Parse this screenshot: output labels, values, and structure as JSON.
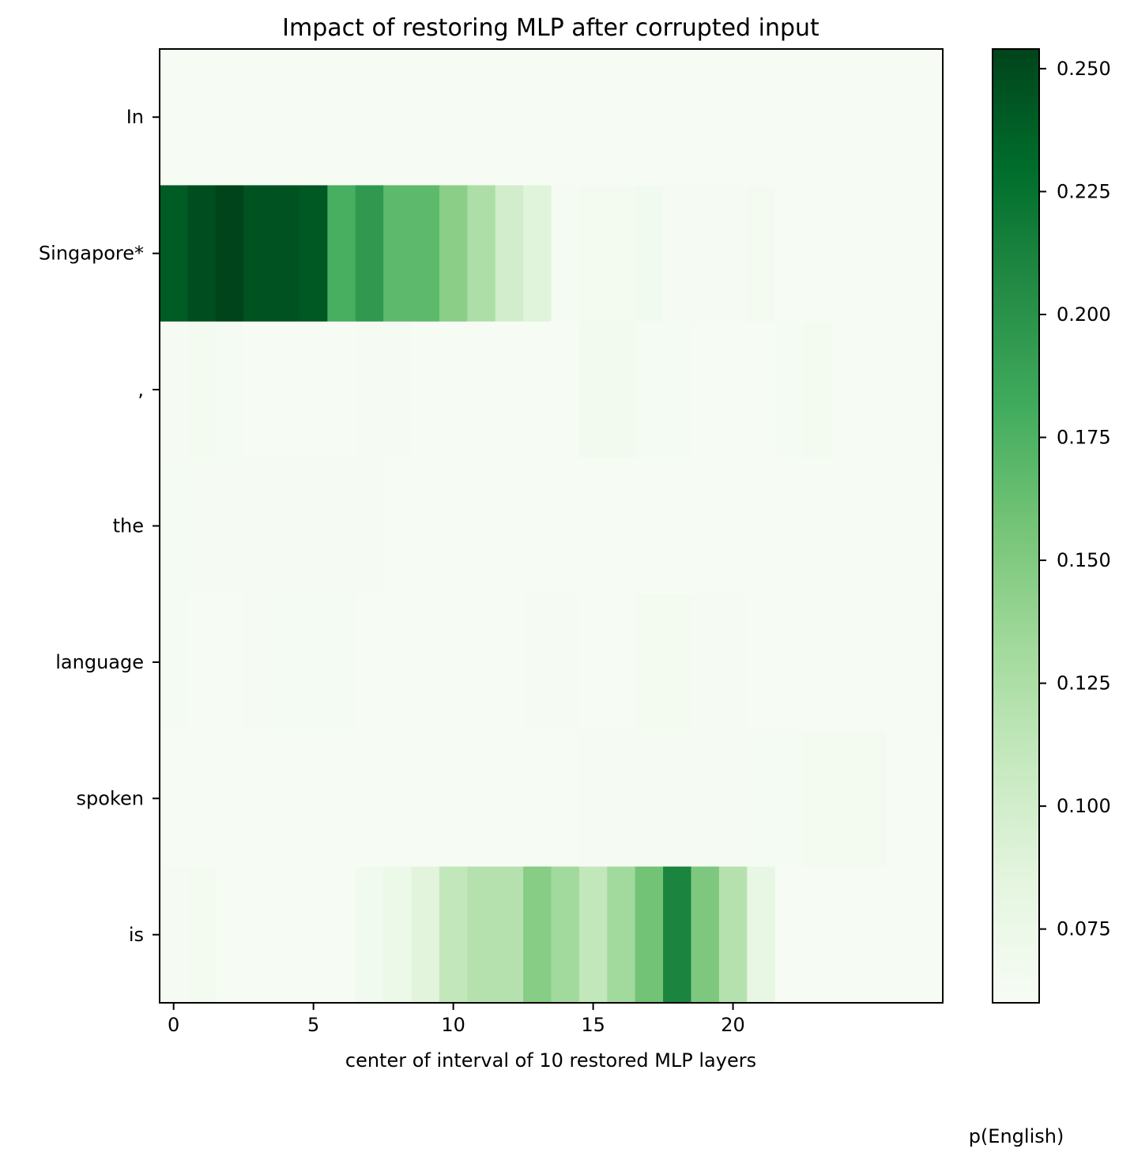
{
  "chart_data": {
    "type": "heatmap",
    "title": "Impact of restoring MLP after corrupted input",
    "xlabel": "center of interval of 10 restored MLP layers",
    "ylabel": "",
    "colorbar_label": "p(English)",
    "colormap": "Greens",
    "rows": [
      "In",
      "Singapore*",
      ",",
      "the",
      "language",
      "spoken",
      "is"
    ],
    "columns": [
      0,
      1,
      2,
      3,
      4,
      5,
      6,
      7,
      8,
      9,
      10,
      11,
      12,
      13,
      14,
      15,
      16,
      17,
      18,
      19,
      20,
      21,
      22,
      23,
      24,
      25,
      26,
      27
    ],
    "x_ticks": [
      0,
      5,
      10,
      15,
      20
    ],
    "color_range": [
      0.06,
      0.254
    ],
    "colorbar_ticks": [
      "0.075",
      "0.100",
      "0.125",
      "0.150",
      "0.175",
      "0.200",
      "0.225",
      "0.250"
    ],
    "values": [
      [
        0.061,
        0.061,
        0.061,
        0.061,
        0.061,
        0.061,
        0.061,
        0.061,
        0.061,
        0.061,
        0.061,
        0.061,
        0.061,
        0.061,
        0.061,
        0.061,
        0.061,
        0.061,
        0.061,
        0.061,
        0.061,
        0.061,
        0.061,
        0.061,
        0.061,
        0.061,
        0.061,
        0.061
      ],
      [
        0.24,
        0.248,
        0.254,
        0.245,
        0.245,
        0.242,
        0.178,
        0.195,
        0.168,
        0.168,
        0.145,
        0.125,
        0.1,
        0.088,
        0.064,
        0.066,
        0.066,
        0.068,
        0.063,
        0.063,
        0.063,
        0.066,
        0.061,
        0.061,
        0.061,
        0.061,
        0.061,
        0.061
      ],
      [
        0.063,
        0.065,
        0.064,
        0.062,
        0.062,
        0.061,
        0.061,
        0.063,
        0.063,
        0.061,
        0.061,
        0.061,
        0.061,
        0.061,
        0.061,
        0.067,
        0.067,
        0.064,
        0.064,
        0.062,
        0.062,
        0.061,
        0.064,
        0.066,
        0.062,
        0.062,
        0.062,
        0.062
      ],
      [
        0.064,
        0.063,
        0.063,
        0.063,
        0.063,
        0.063,
        0.063,
        0.063,
        0.061,
        0.061,
        0.061,
        0.061,
        0.061,
        0.061,
        0.061,
        0.061,
        0.061,
        0.061,
        0.061,
        0.061,
        0.061,
        0.061,
        0.061,
        0.061,
        0.061,
        0.061,
        0.061,
        0.061
      ],
      [
        0.064,
        0.062,
        0.062,
        0.063,
        0.064,
        0.064,
        0.064,
        0.061,
        0.061,
        0.061,
        0.061,
        0.061,
        0.061,
        0.063,
        0.063,
        0.062,
        0.062,
        0.065,
        0.065,
        0.063,
        0.063,
        0.062,
        0.062,
        0.062,
        0.062,
        0.062,
        0.062,
        0.062
      ],
      [
        0.061,
        0.061,
        0.061,
        0.061,
        0.061,
        0.061,
        0.061,
        0.061,
        0.061,
        0.061,
        0.061,
        0.061,
        0.061,
        0.062,
        0.062,
        0.063,
        0.063,
        0.063,
        0.063,
        0.063,
        0.063,
        0.064,
        0.064,
        0.065,
        0.065,
        0.065,
        0.061,
        0.061
      ],
      [
        0.063,
        0.065,
        0.061,
        0.061,
        0.061,
        0.061,
        0.061,
        0.068,
        0.075,
        0.087,
        0.112,
        0.12,
        0.12,
        0.147,
        0.132,
        0.112,
        0.132,
        0.158,
        0.211,
        0.152,
        0.12,
        0.08,
        0.061,
        0.061,
        0.061,
        0.061,
        0.061,
        0.061
      ]
    ]
  }
}
